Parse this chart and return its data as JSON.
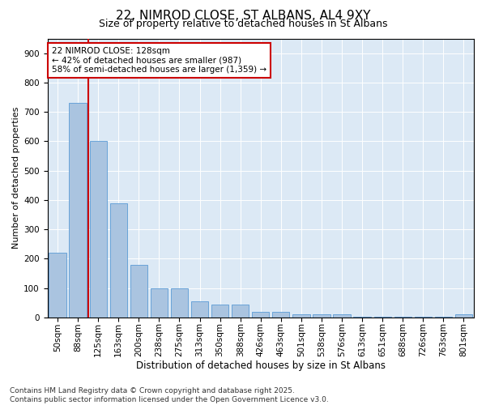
{
  "title1": "22, NIMROD CLOSE, ST ALBANS, AL4 9XY",
  "title2": "Size of property relative to detached houses in St Albans",
  "xlabel": "Distribution of detached houses by size in St Albans",
  "ylabel": "Number of detached properties",
  "categories": [
    "50sqm",
    "88sqm",
    "125sqm",
    "163sqm",
    "200sqm",
    "238sqm",
    "275sqm",
    "313sqm",
    "350sqm",
    "388sqm",
    "426sqm",
    "463sqm",
    "501sqm",
    "538sqm",
    "576sqm",
    "613sqm",
    "651sqm",
    "688sqm",
    "726sqm",
    "763sqm",
    "801sqm"
  ],
  "values": [
    220,
    730,
    600,
    390,
    180,
    100,
    100,
    55,
    45,
    45,
    20,
    20,
    10,
    10,
    10,
    2,
    2,
    2,
    2,
    2,
    10
  ],
  "bar_color": "#aac4e0",
  "bar_edge_color": "#5b9bd5",
  "vline_x_index": 2,
  "vline_color": "#cc0000",
  "annotation_text": "22 NIMROD CLOSE: 128sqm\n← 42% of detached houses are smaller (987)\n58% of semi-detached houses are larger (1,359) →",
  "annotation_box_color": "#ffffff",
  "annotation_box_edge": "#cc0000",
  "ylim": [
    0,
    950
  ],
  "yticks": [
    0,
    100,
    200,
    300,
    400,
    500,
    600,
    700,
    800,
    900
  ],
  "bg_color": "#dce9f5",
  "fig_bg_color": "#ffffff",
  "footer_text": "Contains HM Land Registry data © Crown copyright and database right 2025.\nContains public sector information licensed under the Open Government Licence v3.0.",
  "title1_fontsize": 11,
  "title2_fontsize": 9,
  "xlabel_fontsize": 8.5,
  "ylabel_fontsize": 8,
  "tick_fontsize": 7.5,
  "annotation_fontsize": 7.5,
  "footer_fontsize": 6.5
}
